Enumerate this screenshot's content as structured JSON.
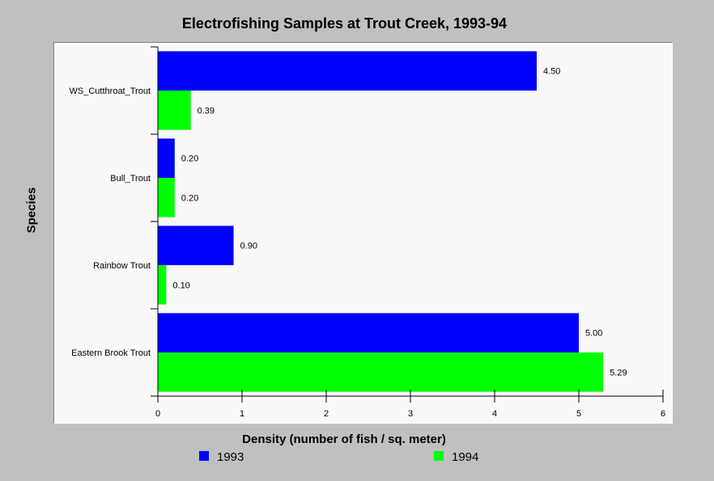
{
  "chart_data": {
    "type": "bar",
    "orientation": "horizontal",
    "title": "Electrofishing Samples at Trout Creek, 1993-94",
    "xlabel": "Density (number of fish / sq. meter)",
    "ylabel": "Species",
    "categories": [
      "WS_Cutthroat_Trout",
      "Bull_Trout",
      "Rainbow Trout",
      "Eastern Brook Trout"
    ],
    "series": [
      {
        "name": "1993",
        "color": "#0000ff",
        "values": [
          4.5,
          0.2,
          0.9,
          5.0
        ],
        "labels": [
          "4.50",
          "0.20",
          "0.90",
          "5.00"
        ]
      },
      {
        "name": "1994",
        "color": "#00ff00",
        "values": [
          0.39,
          0.2,
          0.1,
          5.29
        ],
        "labels": [
          "0.39",
          "0.20",
          "0.10",
          "5.29"
        ]
      }
    ],
    "xlim": [
      0,
      6
    ],
    "xticks": [
      "0",
      "1",
      "2",
      "3",
      "4",
      "5",
      "6"
    ],
    "grid": false,
    "legend": "bottom"
  }
}
